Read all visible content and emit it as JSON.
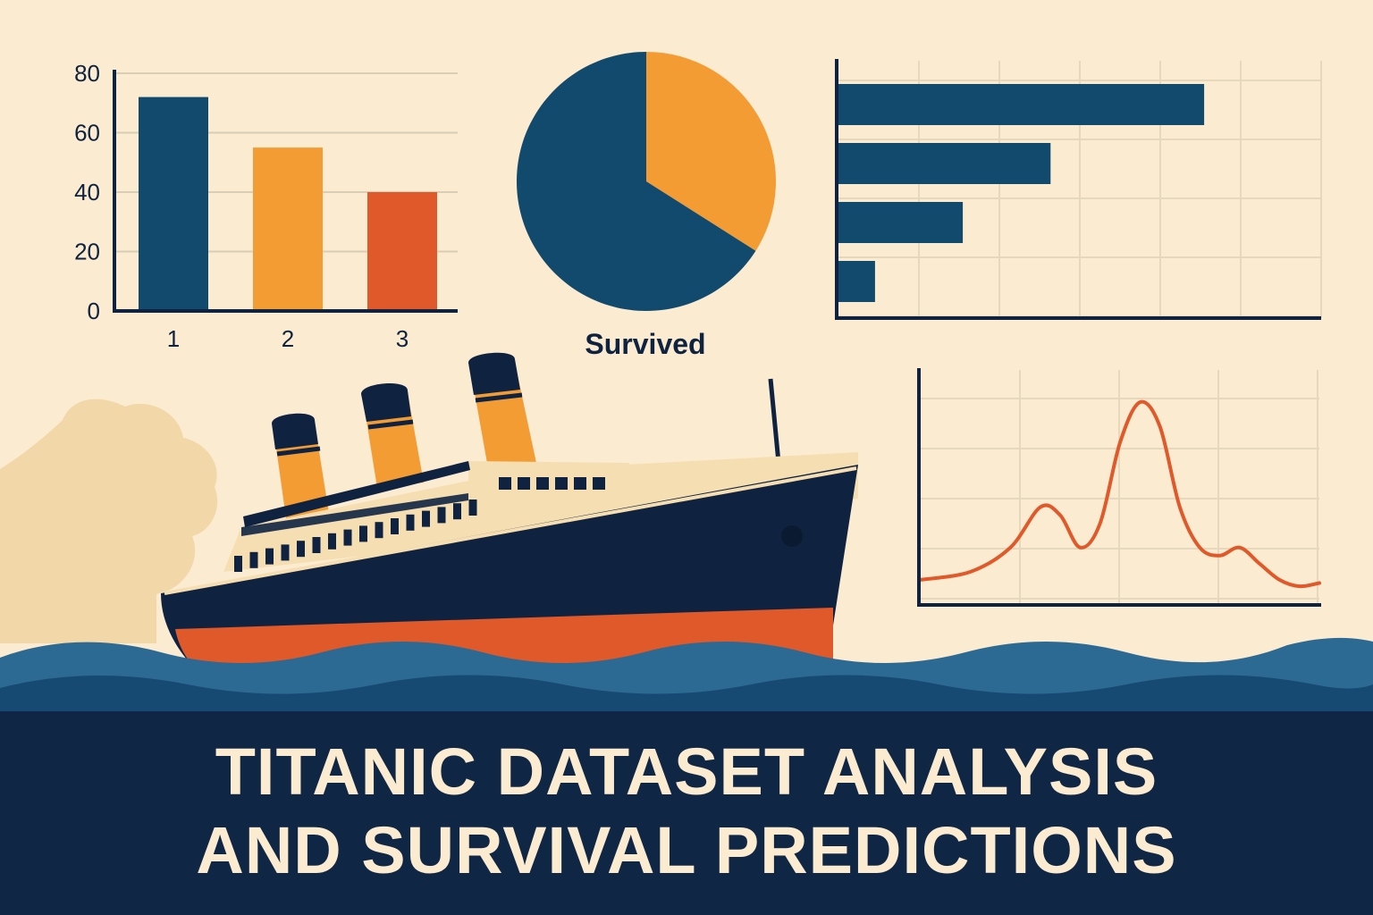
{
  "colors": {
    "background": "#fbebd0",
    "navy": "#0f2644",
    "blue": "#124a6d",
    "orange": "#f39c34",
    "red_orange": "#e0592a",
    "sea_light": "#2c6a93",
    "sea_dark": "#174a72"
  },
  "chart_data": [
    {
      "type": "bar",
      "categories": [
        "1",
        "2",
        "3"
      ],
      "values": [
        72,
        55,
        40
      ],
      "colors": [
        "#124a6d",
        "#f39c34",
        "#e0592a"
      ],
      "yticks": [
        "0",
        "20",
        "40",
        "60",
        "80"
      ],
      "ylim": [
        0,
        80
      ],
      "grid": true
    },
    {
      "type": "pie",
      "label": "Survived",
      "slices": [
        {
          "value": 0.34,
          "color": "#f39c34"
        },
        {
          "value": 0.66,
          "color": "#124a6d"
        }
      ]
    },
    {
      "type": "bar",
      "orientation": "horizontal",
      "values": [
        100,
        58,
        34,
        10
      ],
      "color": "#124a6d",
      "xlim": [
        0,
        132
      ],
      "grid": true
    },
    {
      "type": "line",
      "x": [
        0,
        5,
        9,
        12,
        14,
        16,
        18,
        20,
        22,
        24,
        26,
        28,
        30,
        32,
        34,
        36,
        38,
        40
      ],
      "values": [
        1,
        2,
        5,
        10,
        9,
        5,
        8,
        18,
        23,
        20,
        10,
        5,
        4,
        5,
        3,
        1,
        0.2,
        0.6
      ],
      "color": "#e0592a",
      "ylim": [
        -2,
        27
      ],
      "xlim": [
        0,
        40
      ],
      "grid": true
    }
  ],
  "banner": {
    "title_line_1": "TITANIC DATASET ANALYSIS",
    "title_line_2": "AND SURVIVAL PREDICTIONS"
  }
}
